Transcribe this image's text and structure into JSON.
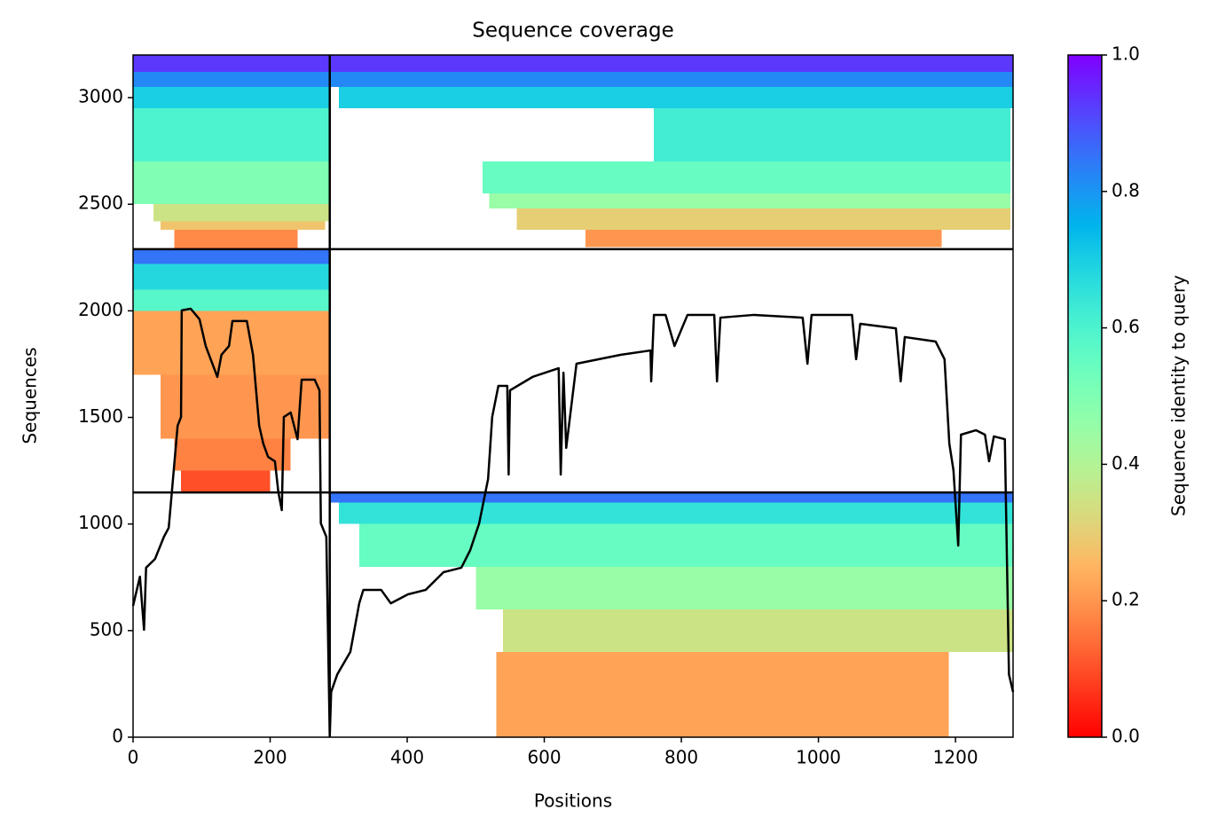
{
  "chart_data": {
    "type": "coverage",
    "title": "Sequence coverage",
    "x_label": "Positions",
    "y_label": "Sequences",
    "colorbar_label": "Sequence identity to query",
    "colormap": "rainbow_r",
    "xlim": [
      0,
      1284
    ],
    "ylim": [
      0,
      3200
    ],
    "xticks": [
      0,
      200,
      400,
      600,
      800,
      1000,
      1200
    ],
    "yticks": [
      0,
      500,
      1000,
      1500,
      2000,
      2500,
      3000
    ],
    "clim": [
      0,
      1
    ],
    "cticks": [
      {
        "value": 0,
        "label": "0.0"
      },
      0.2,
      0.4,
      0.6,
      0.8,
      {
        "value": 1,
        "label": "1.0"
      }
    ],
    "dividers_x": [
      287
    ],
    "dividers_y": [
      1148,
      2289
    ],
    "bands": [
      {
        "x": [
          0,
          287
        ],
        "y": [
          3120,
          3200
        ],
        "identity": 0.93
      },
      {
        "x": [
          0,
          287
        ],
        "y": [
          3050,
          3120
        ],
        "identity": 0.82
      },
      {
        "x": [
          0,
          287
        ],
        "y": [
          2950,
          3050
        ],
        "identity": 0.7
      },
      {
        "x": [
          0,
          287
        ],
        "y": [
          2700,
          2950
        ],
        "identity": 0.6
      },
      {
        "x": [
          0,
          287
        ],
        "y": [
          2500,
          2700
        ],
        "identity": 0.5
      },
      {
        "x": [
          30,
          287
        ],
        "y": [
          2420,
          2500
        ],
        "identity": 0.35
      },
      {
        "x": [
          40,
          280
        ],
        "y": [
          2380,
          2420
        ],
        "identity": 0.28
      },
      {
        "x": [
          60,
          240
        ],
        "y": [
          2289,
          2380
        ],
        "identity": 0.18
      },
      {
        "x": [
          287,
          1284
        ],
        "y": [
          3120,
          3200
        ],
        "identity": 0.93
      },
      {
        "x": [
          287,
          1284
        ],
        "y": [
          3050,
          3120
        ],
        "identity": 0.82
      },
      {
        "x": [
          300,
          1284
        ],
        "y": [
          2950,
          3050
        ],
        "identity": 0.7
      },
      {
        "x": [
          760,
          1280
        ],
        "y": [
          2700,
          2950
        ],
        "identity": 0.62
      },
      {
        "x": [
          510,
          1280
        ],
        "y": [
          2550,
          2700
        ],
        "identity": 0.55
      },
      {
        "x": [
          520,
          1280
        ],
        "y": [
          2480,
          2550
        ],
        "identity": 0.45
      },
      {
        "x": [
          560,
          1280
        ],
        "y": [
          2380,
          2480
        ],
        "identity": 0.3
      },
      {
        "x": [
          660,
          1180
        ],
        "y": [
          2300,
          2380
        ],
        "identity": 0.2
      },
      {
        "x": [
          0,
          287
        ],
        "y": [
          2220,
          2289
        ],
        "identity": 0.85
      },
      {
        "x": [
          0,
          287
        ],
        "y": [
          2100,
          2220
        ],
        "identity": 0.68
      },
      {
        "x": [
          0,
          287
        ],
        "y": [
          2000,
          2100
        ],
        "identity": 0.58
      },
      {
        "x": [
          0,
          287
        ],
        "y": [
          1700,
          2000
        ],
        "identity": 0.22
      },
      {
        "x": [
          40,
          287
        ],
        "y": [
          1400,
          1700
        ],
        "identity": 0.2
      },
      {
        "x": [
          60,
          230
        ],
        "y": [
          1250,
          1400
        ],
        "identity": 0.17
      },
      {
        "x": [
          70,
          200
        ],
        "y": [
          1148,
          1250
        ],
        "identity": 0.1
      },
      {
        "x": [
          287,
          1284
        ],
        "y": [
          1100,
          1148
        ],
        "identity": 0.85
      },
      {
        "x": [
          300,
          1284
        ],
        "y": [
          1000,
          1100
        ],
        "identity": 0.65
      },
      {
        "x": [
          330,
          1284
        ],
        "y": [
          800,
          1000
        ],
        "identity": 0.55
      },
      {
        "x": [
          500,
          1284
        ],
        "y": [
          600,
          800
        ],
        "identity": 0.45
      },
      {
        "x": [
          540,
          1284
        ],
        "y": [
          400,
          600
        ],
        "identity": 0.35
      },
      {
        "x": [
          530,
          1190
        ],
        "y": [
          0,
          400
        ],
        "identity": 0.22
      }
    ],
    "coverage": {
      "color": "#000000",
      "x": [
        0,
        10,
        16,
        19,
        32,
        45,
        52,
        56,
        65,
        70,
        71,
        84,
        97,
        106,
        123,
        129,
        140,
        145,
        166,
        175,
        184,
        190,
        197,
        207,
        212,
        217,
        220,
        230,
        240,
        246,
        265,
        272,
        274,
        282,
        287,
        289,
        298,
        317,
        330,
        336,
        362,
        376,
        401,
        427,
        453,
        479,
        492,
        505,
        518,
        524,
        533,
        546,
        548,
        550,
        583,
        621,
        624,
        628,
        632,
        647,
        712,
        755,
        756,
        760,
        777,
        790,
        809,
        848,
        852,
        857,
        906,
        977,
        984,
        990,
        1049,
        1055,
        1061,
        1113,
        1120,
        1126,
        1171,
        1184,
        1191,
        1197,
        1204,
        1208,
        1230,
        1243,
        1249,
        1256,
        1272,
        1278,
        1284
      ],
      "values": [
        616,
        753,
        504,
        795,
        836,
        940,
        982,
        1128,
        1461,
        1502,
        2002,
        2010,
        1960,
        1835,
        1690,
        1794,
        1835,
        1952,
        1952,
        1794,
        1461,
        1377,
        1315,
        1294,
        1149,
        1065,
        1502,
        1523,
        1398,
        1677,
        1677,
        1627,
        1003,
        940,
        4,
        212,
        295,
        400,
        628,
        691,
        691,
        628,
        670,
        691,
        774,
        795,
        878,
        1003,
        1211,
        1502,
        1648,
        1648,
        1232,
        1627,
        1690,
        1731,
        1232,
        1710,
        1357,
        1752,
        1794,
        1814,
        1669,
        1981,
        1981,
        1835,
        1981,
        1981,
        1669,
        1968,
        1981,
        1968,
        1752,
        1981,
        1981,
        1773,
        1939,
        1918,
        1669,
        1877,
        1856,
        1773,
        1377,
        1253,
        899,
        1419,
        1440,
        1419,
        1294,
        1411,
        1398,
        295,
        212
      ]
    }
  }
}
